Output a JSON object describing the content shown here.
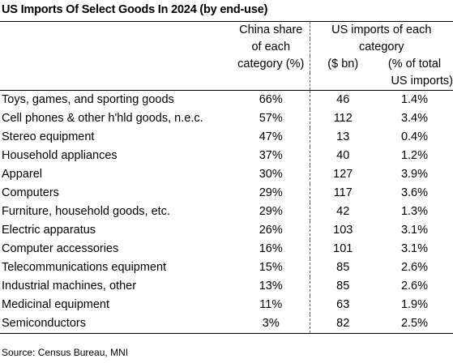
{
  "title": "US Imports Of Select Goods In 2024 (by end-use)",
  "headers": {
    "china_share": [
      "China share",
      "of each",
      "category (%)"
    ],
    "us_imports_group": [
      "US imports of each",
      "category"
    ],
    "usd_bn": "($ bn)",
    "pct_total": [
      "(% of total",
      "US imports)"
    ]
  },
  "rows": [
    {
      "category": "Toys, games, and sporting goods",
      "china_share": "66%",
      "usd_bn": "46",
      "pct_total": "1.4%"
    },
    {
      "category": "Cell phones & other h'hld goods, n.e.c.",
      "china_share": "57%",
      "usd_bn": "112",
      "pct_total": "3.4%"
    },
    {
      "category": "Stereo equipment",
      "china_share": "47%",
      "usd_bn": "13",
      "pct_total": "0.4%"
    },
    {
      "category": "Household appliances",
      "china_share": "37%",
      "usd_bn": "40",
      "pct_total": "1.2%"
    },
    {
      "category": "Apparel",
      "china_share": "30%",
      "usd_bn": "127",
      "pct_total": "3.9%"
    },
    {
      "category": "Computers",
      "china_share": "29%",
      "usd_bn": "117",
      "pct_total": "3.6%"
    },
    {
      "category": "Furniture, household goods, etc.",
      "china_share": "29%",
      "usd_bn": "42",
      "pct_total": "1.3%"
    },
    {
      "category": "Electric apparatus",
      "china_share": "26%",
      "usd_bn": "103",
      "pct_total": "3.1%"
    },
    {
      "category": "Computer accessories",
      "china_share": "16%",
      "usd_bn": "101",
      "pct_total": "3.1%"
    },
    {
      "category": "Telecommunications equipment",
      "china_share": "15%",
      "usd_bn": "85",
      "pct_total": "2.6%"
    },
    {
      "category": "Industrial machines, other",
      "china_share": "13%",
      "usd_bn": "85",
      "pct_total": "2.6%"
    },
    {
      "category": "Medicinal equipment",
      "china_share": "11%",
      "usd_bn": "63",
      "pct_total": "1.9%"
    },
    {
      "category": "Semiconductors",
      "china_share": "3%",
      "usd_bn": "82",
      "pct_total": "2.5%"
    }
  ],
  "source": "Source: Census Bureau, MNI"
}
